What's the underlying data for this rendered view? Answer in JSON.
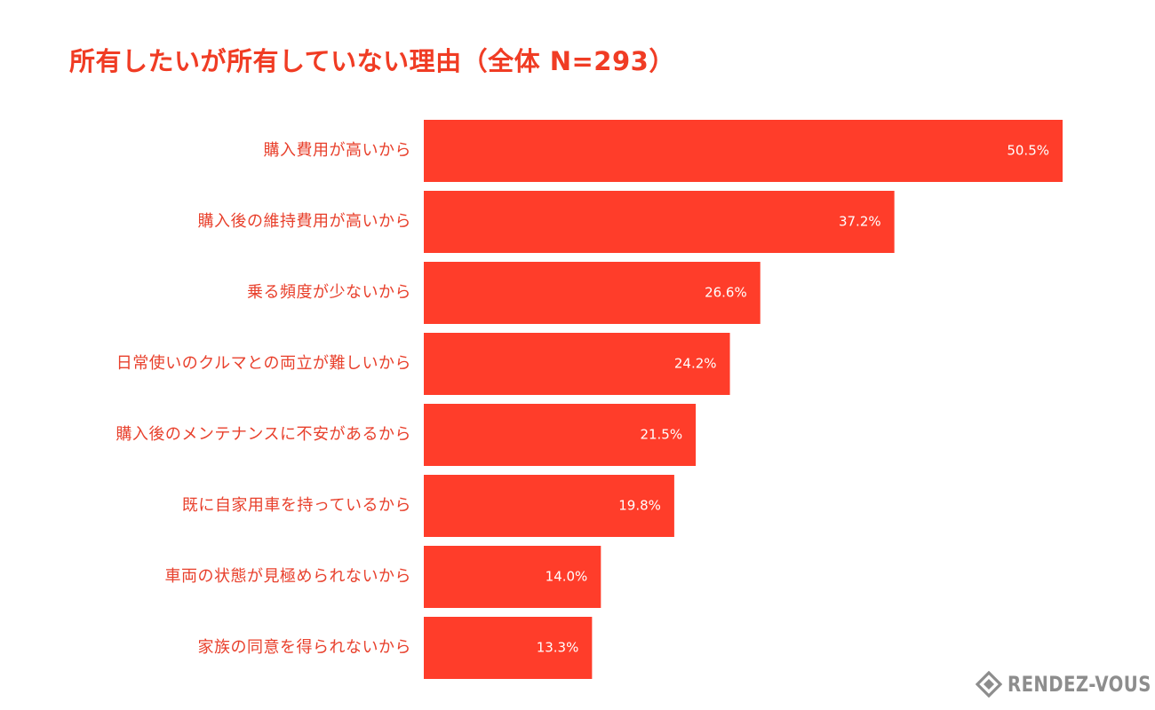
{
  "chart_data": {
    "type": "bar",
    "orientation": "horizontal",
    "title": "所有したいが所有していない理由（全体 N=293）",
    "categories": [
      "購入費用が高いから",
      "購入後の維持費用が高いから",
      "乗る頻度が少ないから",
      "日常使いのクルマとの両立が難しいから",
      "購入後のメンテナンスに不安があるから",
      "既に自家用車を持っているから",
      "車両の状態が見極められないから",
      "家族の同意を得られないから"
    ],
    "values": [
      50.5,
      37.2,
      26.6,
      24.2,
      21.5,
      19.8,
      14.0,
      13.3
    ],
    "value_labels": [
      "50.5%",
      "37.2%",
      "26.6%",
      "24.2%",
      "21.5%",
      "19.8%",
      "14.0%",
      "13.3%"
    ],
    "unit": "%",
    "xlim": [
      0,
      50.5
    ],
    "grid": false,
    "legend": "none",
    "bar_color": "#ff3d2a",
    "title_color": "#f03c24",
    "label_color": "#e8402c",
    "value_label_color": "#ffffff"
  },
  "watermark": {
    "text": "RENDEZ-VOUS",
    "icon": "rendez-vous-logo-icon",
    "color": "#8d8d8d"
  }
}
